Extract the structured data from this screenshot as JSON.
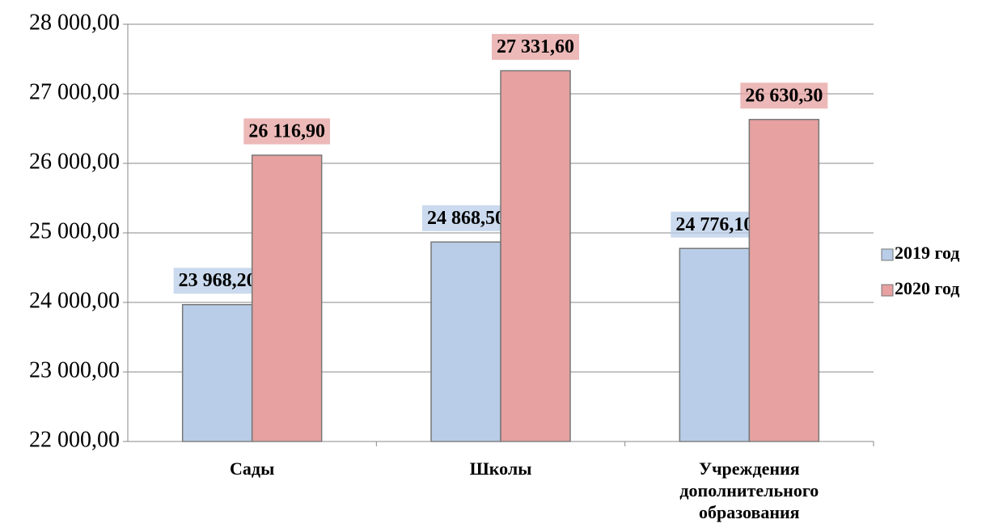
{
  "chart_data": {
    "type": "bar",
    "categories": [
      "Сады",
      "Школы",
      "Учреждения дополнительного образования"
    ],
    "series": [
      {
        "name": "2019 год",
        "color": "#b9cde8",
        "values": [
          23968.2,
          24868.5,
          24776.1
        ],
        "value_labels": [
          "23 968,20",
          "24 868,50",
          "24 776,10"
        ]
      },
      {
        "name": "2020 год",
        "color": "#e6a1a0",
        "values": [
          26116.9,
          27331.6,
          26630.3
        ],
        "value_labels": [
          "26 116,90",
          "27 331,60",
          "26 630,30"
        ]
      }
    ],
    "ylim": [
      22000,
      28000
    ],
    "yticks": [
      {
        "value": 22000,
        "label": "22 000,00"
      },
      {
        "value": 23000,
        "label": "23 000,00"
      },
      {
        "value": 24000,
        "label": "24 000,00"
      },
      {
        "value": 25000,
        "label": "25 000,00"
      },
      {
        "value": 26000,
        "label": "26 000,00"
      },
      {
        "value": 27000,
        "label": "27 000,00"
      },
      {
        "value": 28000,
        "label": "28 000,00"
      }
    ],
    "grid": true,
    "legend": "right"
  }
}
